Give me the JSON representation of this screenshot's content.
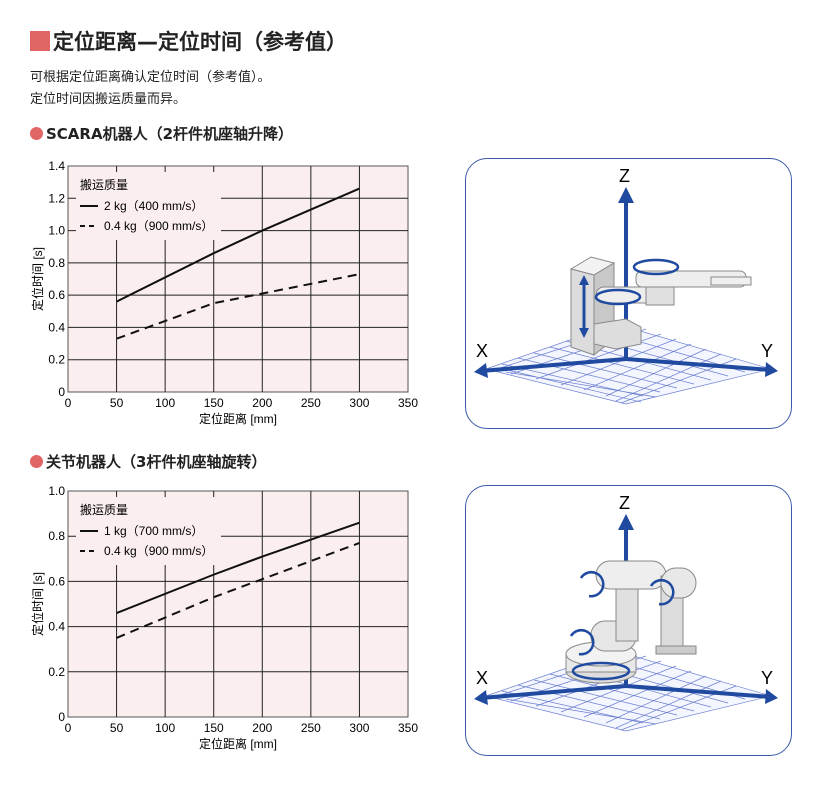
{
  "title": "定位距离—定位时间（参考值）",
  "description": [
    "可根据定位距离确认定位时间（参考值）。",
    "定位时间因搬运质量而异。"
  ],
  "colors": {
    "accent": "#e06666",
    "plot_bg": "#fbeeee",
    "panel_border": "#3b5aa8",
    "axis_arrow": "#1f4aa0"
  },
  "sections": [
    {
      "heading": "SCARA机器人（2杆件机座轴升降）",
      "illustration": {
        "axes": [
          "Z",
          "X",
          "Y"
        ]
      }
    },
    {
      "heading": "关节机器人（3杆件机座轴旋转）",
      "illustration": {
        "axes": [
          "Z",
          "X",
          "Y"
        ]
      }
    }
  ],
  "chart_data": [
    {
      "type": "line",
      "xlabel": "定位距离 [mm]",
      "ylabel": "定位时间 [s]",
      "xlim": [
        0,
        350
      ],
      "ylim": [
        0,
        1.4
      ],
      "xticks": [
        "0",
        "50",
        "100",
        "150",
        "200",
        "250",
        "300",
        "350"
      ],
      "yticks": [
        "0",
        "0.2",
        "0.4",
        "0.6",
        "0.8",
        "1.0",
        "1.2",
        "1.4"
      ],
      "grid": true,
      "legend_title": "搬运质量",
      "legend_position": "top-left",
      "series": [
        {
          "name": "2 kg（400 mm/s）",
          "style": "solid",
          "x": [
            50,
            150,
            200,
            300
          ],
          "y": [
            0.56,
            0.86,
            1.0,
            1.26
          ]
        },
        {
          "name": "0.4 kg（900 mm/s）",
          "style": "dashed",
          "x": [
            50,
            150,
            200,
            300
          ],
          "y": [
            0.33,
            0.55,
            0.61,
            0.73
          ]
        }
      ]
    },
    {
      "type": "line",
      "xlabel": "定位距离 [mm]",
      "ylabel": "定位时间 [s]",
      "xlim": [
        0,
        350
      ],
      "ylim": [
        0,
        1.0
      ],
      "xticks": [
        "0",
        "50",
        "100",
        "150",
        "200",
        "250",
        "300",
        "350"
      ],
      "yticks": [
        "0",
        "0.2",
        "0.4",
        "0.6",
        "0.8",
        "1.0"
      ],
      "grid": true,
      "legend_title": "搬运质量",
      "legend_position": "top-left",
      "series": [
        {
          "name": "1 kg（700 mm/s）",
          "style": "solid",
          "x": [
            50,
            150,
            200,
            300
          ],
          "y": [
            0.46,
            0.63,
            0.71,
            0.86
          ]
        },
        {
          "name": "0.4 kg（900 mm/s）",
          "style": "dashed",
          "x": [
            50,
            150,
            200,
            300
          ],
          "y": [
            0.35,
            0.53,
            0.61,
            0.77
          ]
        }
      ]
    }
  ]
}
